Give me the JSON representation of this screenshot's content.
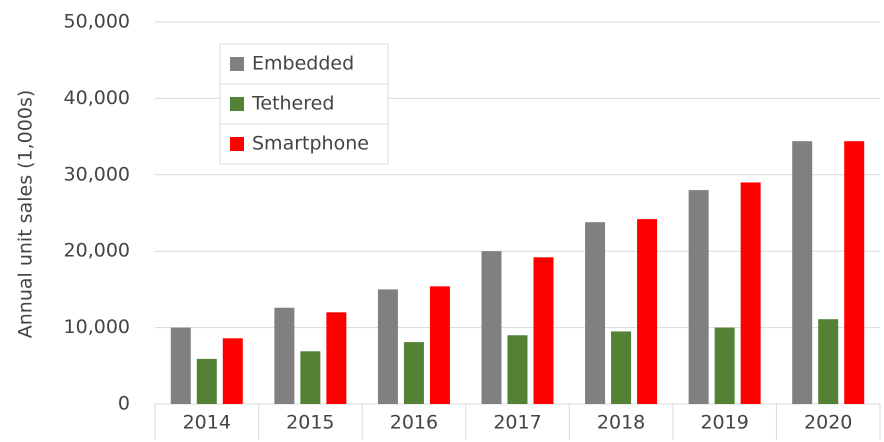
{
  "chart_data": {
    "type": "bar",
    "y_label": "Annual unit sales (1,000s)",
    "categories": [
      "2014",
      "2015",
      "2016",
      "2017",
      "2018",
      "2019",
      "2020"
    ],
    "series": [
      {
        "name": "Embedded",
        "color": "#808080",
        "values": [
          10000,
          12600,
          15000,
          20000,
          23800,
          28000,
          34400
        ]
      },
      {
        "name": "Tethered",
        "color": "#548235",
        "values": [
          5900,
          6900,
          8100,
          9000,
          9500,
          10000,
          11100
        ]
      },
      {
        "name": "Smartphone",
        "color": "#ff0000",
        "values": [
          8600,
          12000,
          15400,
          19200,
          24200,
          29000,
          34400
        ]
      }
    ],
    "ylim": [
      0,
      50000
    ],
    "yticks": [
      0,
      {
        "value": 10000,
        "label": "10,000"
      },
      {
        "value": 20000,
        "label": "20,000"
      },
      {
        "value": 30000,
        "label": "30,000"
      },
      {
        "value": 40000,
        "label": "40,000"
      },
      {
        "value": 50000,
        "label": "50,000"
      }
    ],
    "grid": true,
    "legend": "upper left"
  }
}
